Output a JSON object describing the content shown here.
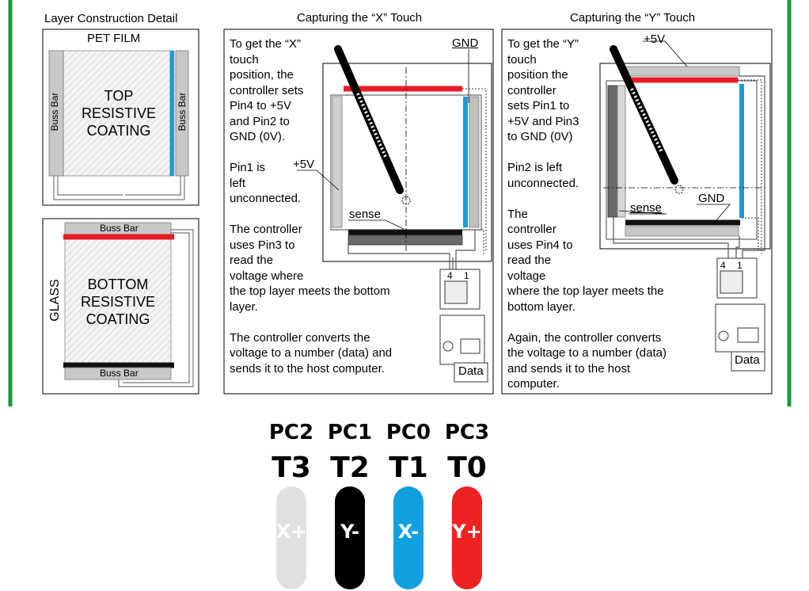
{
  "titles": {
    "layer": "Layer Construction Detail",
    "x_touch": "Capturing the “X” Touch",
    "y_touch": "Capturing the “Y” Touch"
  },
  "layer_top": {
    "film_label": "PET FILM",
    "coating_lines": [
      "TOP",
      "RESISTIVE",
      "COATING"
    ],
    "bus_left": "Buss Bar",
    "bus_right": "Buss Bar"
  },
  "layer_bottom": {
    "glass_label": "GLASS",
    "coating_lines": [
      "BOTTOM",
      "RESISTIVE",
      "COATING"
    ],
    "bus_top": "Buss Bar",
    "bus_bottom": "Buss Bar"
  },
  "x_panel": {
    "text_lines": [
      "To get the “X”",
      "touch",
      "position, the",
      "controller sets",
      "Pin4 to +5V",
      "and Pin2 to",
      "GND (0V).",
      "",
      "Pin1 is",
      "left",
      "unconnected.",
      "",
      "The controller",
      "uses Pin3 to",
      "read the",
      "voltage where",
      "the top layer meets the bottom",
      "layer.",
      "",
      "The controller converts the",
      "voltage to a number (data) and",
      "sends it to the host computer."
    ],
    "label_gnd": "GND",
    "label_5v": "+5V",
    "label_sense": "sense",
    "pin_left": "4",
    "pin_right": "1",
    "data_label": "Data"
  },
  "y_panel": {
    "text_lines": [
      "To get the “Y”",
      "touch",
      "position the",
      "controller",
      "sets Pin1 to",
      "+5V and Pin3",
      "to GND (0V)",
      "",
      "Pin2 is left",
      "unconnected.",
      "",
      "The",
      "controller",
      "uses Pin4 to",
      "read the",
      "voltage",
      "where the top layer meets the",
      "bottom layer.",
      "",
      "Again, the controller converts",
      "the voltage to a number (data)",
      "and sends it to the host",
      "computer."
    ],
    "label_5v": "+5V",
    "label_gnd": "GND",
    "label_sense": "sense",
    "pin_left": "4",
    "pin_right": "1",
    "data_label": "Data"
  },
  "wires": [
    {
      "pc": "PC2",
      "t": "T3",
      "label": "X+",
      "color": "#e0e0e0"
    },
    {
      "pc": "PC1",
      "t": "T2",
      "label": "Y-",
      "color": "#000000"
    },
    {
      "pc": "PC0",
      "t": "T1",
      "label": "X-",
      "color": "#10a0e0"
    },
    {
      "pc": "PC3",
      "t": "T0",
      "label": "Y+",
      "color": "#ee2222"
    }
  ],
  "colors": {
    "border_green": "#1a9a3a",
    "red_bar": "#e81c24",
    "blue_bar": "#1a9ad8",
    "black_bar": "#111111",
    "gray_bar": "#c8c8c8"
  }
}
